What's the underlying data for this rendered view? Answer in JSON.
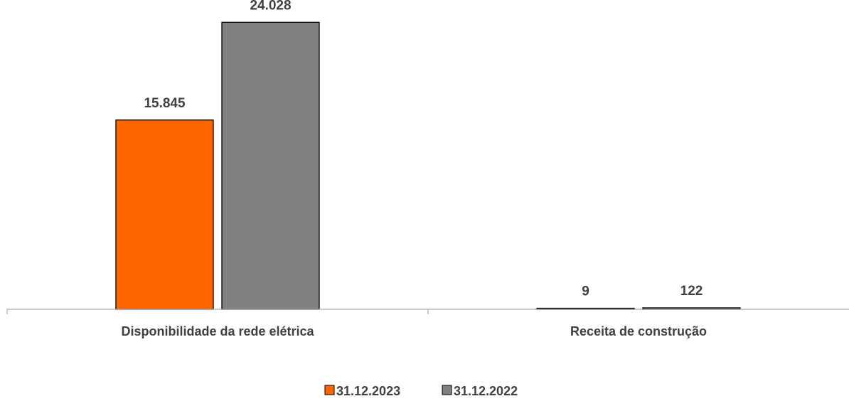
{
  "chart_data": {
    "type": "bar",
    "categories": [
      "Disponibilidade da rede elétrica",
      "Receita de construção"
    ],
    "series": [
      {
        "name": "31.12.2023",
        "values": [
          15845,
          9
        ],
        "labels": [
          "15.845",
          "9"
        ],
        "color": "#FF6600"
      },
      {
        "name": "31.12.2022",
        "values": [
          24028,
          122
        ],
        "labels": [
          "24.028",
          "122"
        ],
        "color": "#808080"
      }
    ],
    "title": "",
    "xlabel": "",
    "ylabel": "",
    "ylim": [
      0,
      25000
    ],
    "grid": false,
    "legend": "bottom"
  }
}
